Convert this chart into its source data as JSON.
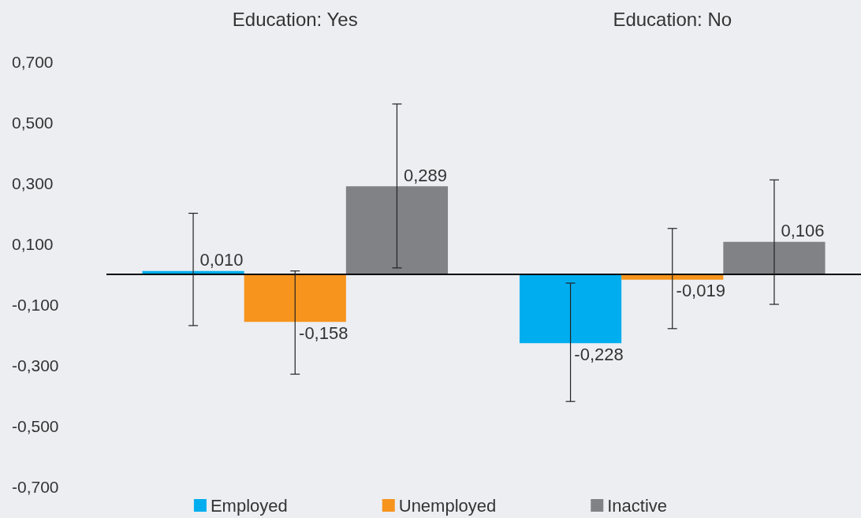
{
  "chart_data": {
    "type": "bar",
    "categories": [
      "Education: Yes",
      "Education: No"
    ],
    "series": [
      {
        "name": "Employed",
        "color": "#00aeef",
        "values": [
          0.01,
          -0.228
        ],
        "value_labels": [
          "0,010",
          "-0,228"
        ],
        "errors": [
          [
            -0.17,
            0.2
          ],
          [
            -0.42,
            -0.03
          ]
        ]
      },
      {
        "name": "Unemployed",
        "color": "#f7941d",
        "values": [
          -0.158,
          -0.019
        ],
        "value_labels": [
          "-0,158",
          "-0,019"
        ],
        "errors": [
          [
            -0.33,
            0.01
          ],
          [
            -0.18,
            0.15
          ]
        ]
      },
      {
        "name": "Inactive",
        "color": "#808285",
        "values": [
          0.289,
          0.106
        ],
        "value_labels": [
          "0,289",
          "0,106"
        ],
        "errors": [
          [
            0.02,
            0.56
          ],
          [
            -0.1,
            0.31
          ]
        ]
      }
    ],
    "ylim": [
      -0.7,
      0.7
    ],
    "yticks": [
      {
        "value": -0.7,
        "label": "-0,700"
      },
      {
        "value": -0.5,
        "label": "-0,500"
      },
      {
        "value": -0.3,
        "label": "-0,300"
      },
      {
        "value": -0.1,
        "label": "-0,100"
      },
      {
        "value": 0.1,
        "label": "0,100"
      },
      {
        "value": 0.3,
        "label": "0,300"
      },
      {
        "value": 0.5,
        "label": "0,500"
      },
      {
        "value": 0.7,
        "label": "0,700"
      }
    ],
    "ref_lines": [
      {
        "axis": "y",
        "value": 0,
        "color": "#000000"
      }
    ],
    "grid": false,
    "legend": "bottom"
  }
}
